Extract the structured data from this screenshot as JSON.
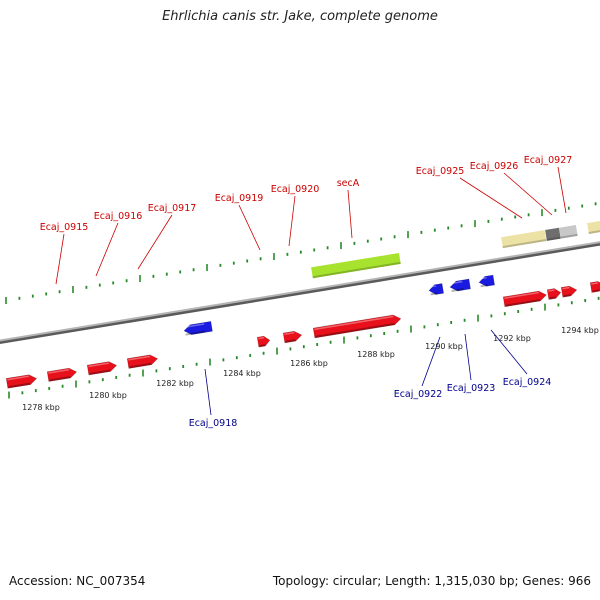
{
  "header": {
    "title": "Ehrlichia canis str. Jake, complete genome"
  },
  "footer": {
    "accession": "Accession: NC_007354",
    "summary": "Topology: circular; Length: 1,315,030 bp; Genes: 966"
  },
  "colors": {
    "forward_gene": "#e8101a",
    "reverse_gene": "#1a1ae0",
    "forward_label": "#cc0000",
    "reverse_label": "#00008b",
    "highlight_gene": "#a6e22e",
    "ruler_tick": "#2a8a2a",
    "backbone": "#808080",
    "feature_tan": "#ede2a6",
    "feature_dark": "#6e6e6e",
    "feature_light": "#c8c8c8"
  },
  "scale_labels": [
    "1278 kbp",
    "1280 kbp",
    "1282 kbp",
    "1284 kbp",
    "1286 kbp",
    "1288 kbp",
    "1290 kbp",
    "1292 kbp",
    "1294 kbp"
  ],
  "forward_genes": [
    {
      "name": "Ecaj_0915"
    },
    {
      "name": "Ecaj_0916"
    },
    {
      "name": "Ecaj_0917"
    },
    {
      "name": "Ecaj_0919"
    },
    {
      "name": "Ecaj_0920"
    },
    {
      "name": "secA"
    },
    {
      "name": "Ecaj_0925"
    },
    {
      "name": "Ecaj_0926"
    },
    {
      "name": "Ecaj_0927"
    }
  ],
  "reverse_genes": [
    {
      "name": "Ecaj_0918"
    },
    {
      "name": "Ecaj_0922"
    },
    {
      "name": "Ecaj_0923"
    },
    {
      "name": "Ecaj_0924"
    }
  ]
}
